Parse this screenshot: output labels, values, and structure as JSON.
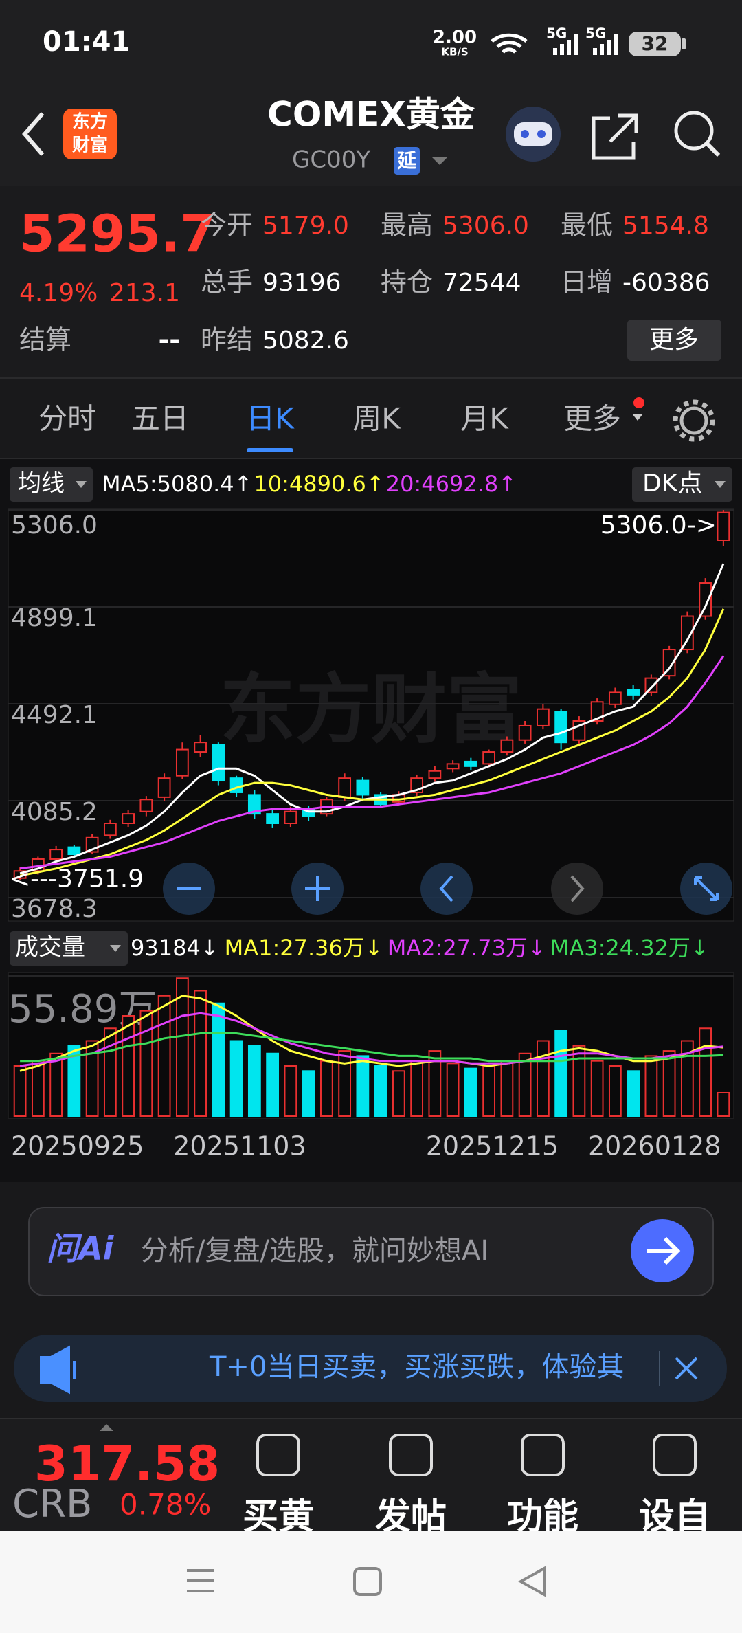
{
  "status_bar": {
    "time": "01:41",
    "net_speed": "2.00",
    "net_unit": "KB/S",
    "signal_1": "5G",
    "signal_2": "5G",
    "battery": "32"
  },
  "header": {
    "logo_top": "东方",
    "logo_bottom": "财富",
    "title": "COMEX黄金",
    "code": "GC00Y",
    "delay": "延"
  },
  "quote": {
    "price": "5295.7",
    "change_pct": "4.19%",
    "change": "213.1",
    "settle_label": "结算",
    "settle": "--",
    "more": "更多",
    "fields": [
      {
        "label": "今开",
        "value": "5179.0",
        "color": "#ff3b30"
      },
      {
        "label": "最高",
        "value": "5306.0",
        "color": "#ff3b30"
      },
      {
        "label": "最低",
        "value": "5154.8",
        "color": "#ff3b30"
      },
      {
        "label": "总手",
        "value": "93196",
        "color": "#ffffff"
      },
      {
        "label": "持仓",
        "value": "72544",
        "color": "#ffffff"
      },
      {
        "label": "日增",
        "value": "-60386",
        "color": "#ffffff"
      },
      {
        "label": "昨结",
        "value": "5082.6",
        "color": "#ffffff"
      }
    ]
  },
  "tabs": {
    "items": [
      "分时",
      "五日",
      "日K",
      "周K",
      "月K",
      "更多"
    ],
    "active": 2
  },
  "chart_data": [
    {
      "type": "candlestick",
      "selector": "均线",
      "dk": "DK点",
      "watermark": "东方财富",
      "up_color": "#e93030",
      "down_color": "#00e5ee",
      "open": [
        3760,
        3790,
        3840,
        3890,
        3870,
        3940,
        3990,
        4040,
        4100,
        4190,
        4290,
        4320,
        4180,
        4110,
        4030,
        3990,
        4050,
        4030,
        4100,
        4170,
        4110,
        4080,
        4120,
        4180,
        4220,
        4250,
        4240,
        4290,
        4340,
        4400,
        4460,
        4340,
        4420,
        4490,
        4550,
        4540,
        4610,
        4720,
        4860,
        5179.0
      ],
      "high": [
        3805,
        3850,
        3895,
        3900,
        3945,
        4005,
        4045,
        4105,
        4200,
        4330,
        4360,
        4330,
        4190,
        4130,
        4050,
        4060,
        4065,
        4100,
        4200,
        4185,
        4120,
        4125,
        4195,
        4230,
        4255,
        4265,
        4300,
        4355,
        4420,
        4490,
        4470,
        4440,
        4515,
        4560,
        4570,
        4615,
        4735,
        4880,
        5020,
        5306.0
      ],
      "low": [
        3751.9,
        3775,
        3825,
        3845,
        3860,
        3925,
        3975,
        4020,
        4085,
        4175,
        4270,
        4150,
        4100,
        4010,
        3970,
        3975,
        4000,
        4020,
        4085,
        4095,
        4055,
        4065,
        4105,
        4165,
        4205,
        4215,
        4225,
        4275,
        4325,
        4385,
        4300,
        4325,
        4405,
        4475,
        4510,
        4525,
        4595,
        4705,
        4845,
        5154.8
      ],
      "close": [
        3790,
        3840,
        3880,
        3860,
        3930,
        3990,
        4030,
        4090,
        4180,
        4300,
        4330,
        4170,
        4120,
        4030,
        3990,
        4040,
        4020,
        4090,
        4180,
        4110,
        4070,
        4110,
        4180,
        4210,
        4240,
        4230,
        4290,
        4340,
        4400,
        4470,
        4330,
        4420,
        4500,
        4540,
        4530,
        4600,
        4720,
        4860,
        5000,
        5295.7
      ],
      "ma": [
        {
          "name": "MA5:5080.4↑",
          "color": "#ffffff",
          "values": [
            3780,
            3800,
            3830,
            3850,
            3880,
            3910,
            3940,
            3980,
            4040,
            4120,
            4190,
            4220,
            4220,
            4190,
            4130,
            4070,
            4040,
            4040,
            4060,
            4090,
            4100,
            4110,
            4130,
            4160,
            4170,
            4200,
            4230,
            4260,
            4300,
            4350,
            4370,
            4400,
            4430,
            4460,
            4480,
            4560,
            4640,
            4760,
            4900,
            5080.4
          ]
        },
        {
          "name": "10:4890.6↑",
          "color": "#ffff3c",
          "values": [
            3770,
            3785,
            3800,
            3820,
            3840,
            3860,
            3890,
            3920,
            3960,
            4010,
            4060,
            4110,
            4140,
            4160,
            4160,
            4150,
            4130,
            4110,
            4100,
            4090,
            4090,
            4090,
            4100,
            4110,
            4130,
            4150,
            4170,
            4200,
            4230,
            4260,
            4290,
            4320,
            4350,
            4380,
            4420,
            4460,
            4520,
            4600,
            4720,
            4890.6
          ]
        },
        {
          "name": "20:4692.8↑",
          "color": "#e040fb",
          "values": [
            3800,
            3810,
            3820,
            3830,
            3840,
            3850,
            3870,
            3890,
            3910,
            3940,
            3970,
            4000,
            4020,
            4040,
            4050,
            4050,
            4050,
            4060,
            4060,
            4060,
            4060,
            4070,
            4080,
            4090,
            4100,
            4110,
            4120,
            4140,
            4160,
            4180,
            4200,
            4230,
            4260,
            4290,
            4320,
            4360,
            4410,
            4480,
            4580,
            4692.8
          ]
        }
      ],
      "ylim": [
        3678.3,
        5306.0
      ],
      "yticks": [
        3678.3,
        4085.2,
        4492.1,
        4899.1,
        {
          "value": 5306.0,
          "label": "5306.0"
        }
      ],
      "max_label": "5306.0->",
      "min_label": "<---3751.9"
    },
    {
      "type": "bar",
      "selector": "成交量",
      "current": "93184↓",
      "values": [
        20,
        22,
        25,
        28,
        30,
        35,
        40,
        42,
        48,
        55,
        50,
        45,
        30,
        28,
        25,
        20,
        18,
        22,
        26,
        24,
        20,
        18,
        22,
        26,
        21,
        19,
        20,
        22,
        25,
        30,
        34,
        28,
        22,
        20,
        18,
        24,
        26,
        30,
        35,
        9.3184
      ],
      "ma": [
        {
          "name": "MA1:27.36万↓",
          "color": "#ffff3c",
          "values": [
            18,
            20,
            23,
            26,
            28,
            32,
            36,
            40,
            44,
            48,
            47,
            44,
            40,
            35,
            30,
            26,
            24,
            22,
            21,
            22,
            21,
            20,
            21,
            22,
            22,
            21,
            20,
            21,
            22,
            24,
            26,
            27,
            26,
            24,
            22,
            22,
            23,
            25,
            28,
            27.36
          ]
        },
        {
          "name": "MA2:27.73万↓",
          "color": "#e040fb",
          "values": [
            20,
            21,
            22,
            24,
            25,
            28,
            31,
            34,
            37,
            40,
            41,
            40,
            38,
            35,
            32,
            29,
            27,
            25,
            24,
            23,
            22,
            22,
            22,
            22,
            22,
            21,
            21,
            21,
            22,
            23,
            24,
            25,
            25,
            24,
            23,
            23,
            24,
            25,
            27,
            27.73
          ]
        },
        {
          "name": "MA3:24.32万↓",
          "color": "#3ddc5a",
          "values": [
            22,
            22,
            23,
            24,
            25,
            26,
            28,
            29,
            31,
            32,
            33,
            33,
            33,
            32,
            31,
            30,
            29,
            28,
            27,
            26,
            25,
            24,
            24,
            23,
            23,
            23,
            22,
            22,
            22,
            22,
            22,
            23,
            23,
            23,
            23,
            23,
            23,
            24,
            24,
            24.32
          ]
        }
      ],
      "ylim": [
        0,
        55.89
      ],
      "yticks": [
        {
          "value": 55.89,
          "label": "55.89万"
        }
      ],
      "categories": [
        "20250925",
        null,
        null,
        null,
        null,
        null,
        null,
        null,
        null,
        "20251103",
        null,
        null,
        null,
        null,
        null,
        null,
        null,
        null,
        null,
        null,
        null,
        null,
        null,
        "20251215",
        null,
        null,
        null,
        null,
        null,
        null,
        null,
        null,
        "20260128",
        null,
        null,
        null,
        null,
        null,
        null,
        null
      ]
    }
  ],
  "ai_bar": {
    "logo": "问Ai",
    "placeholder": "分析/复盘/选股，就问妙想AI"
  },
  "banner": {
    "text": "T+0当日买卖，买涨买跌，体验其"
  },
  "bottom_bar": {
    "index_value": "317.58",
    "index_name": "CRB",
    "index_change": "0.78%",
    "items": [
      "买黄",
      "发帖",
      "功能",
      "设自"
    ]
  }
}
